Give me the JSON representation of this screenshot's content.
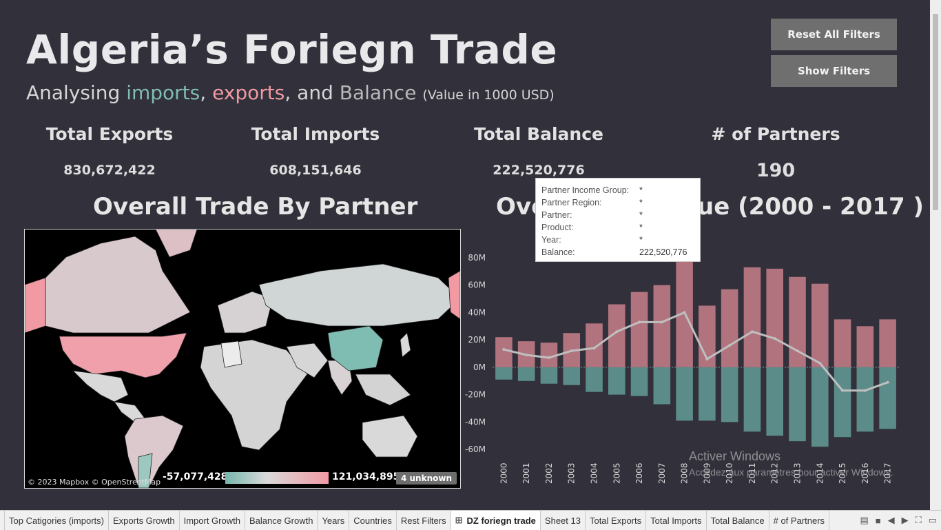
{
  "header": {
    "title": "Algeria’s Foriegn Trade",
    "subtitle_prefix": "Analysing ",
    "subtitle_imports": "imports",
    "subtitle_sep1": ", ",
    "subtitle_exports": "exports",
    "subtitle_sep2": ", and ",
    "subtitle_balance": "Balance",
    "subtitle_unit": "(Value in 1000 USD)"
  },
  "buttons": {
    "reset": "Reset All Filters",
    "show": "Show Filters"
  },
  "kpis": [
    {
      "label": "Total Exports",
      "value": "830,672,422"
    },
    {
      "label": "Total Imports",
      "value": "608,151,646"
    },
    {
      "label": "Total Balance",
      "value": "222,520,776"
    },
    {
      "label": "# of Partners",
      "value": "190"
    }
  ],
  "sections": {
    "map_title": "Overall Trade By Partner",
    "chart_title_left": "Ove",
    "chart_title_right": "ue  (2000 - 2017 )"
  },
  "map": {
    "attribution": "© 2023 Mapbox © OpenStreetMap",
    "legend_min": "-57,077,428",
    "legend_max": "121,034,895",
    "unknown": "4 unknown",
    "colors": {
      "negative": "#76b6ac",
      "neutral": "#d9d9d9",
      "positive": "#f19aa4"
    }
  },
  "tooltip": [
    {
      "key": "Partner Income Group:",
      "value": "*"
    },
    {
      "key": "Partner Region:",
      "value": "*"
    },
    {
      "key": "Partner:",
      "value": "*"
    },
    {
      "key": "Product:",
      "value": "*"
    },
    {
      "key": "Year:",
      "value": "*"
    },
    {
      "key": "Balance:",
      "value": "222,520,776"
    }
  ],
  "watermark": {
    "line1": "Activer Windows",
    "line2": "Accédez aux paramètres pour activer Windows."
  },
  "tabs": [
    {
      "label": "Top Catigories (imports)",
      "active": false
    },
    {
      "label": "Exports Growth",
      "active": false
    },
    {
      "label": "Import Growth",
      "active": false
    },
    {
      "label": "Balance Growth",
      "active": false
    },
    {
      "label": "Years",
      "active": false
    },
    {
      "label": "Countries",
      "active": false
    },
    {
      "label": "Rest Filters",
      "active": false
    },
    {
      "label": "DZ foriegn trade",
      "active": true
    },
    {
      "label": "Sheet 13",
      "active": false
    },
    {
      "label": "Total Exports",
      "active": false
    },
    {
      "label": "Total Imports",
      "active": false
    },
    {
      "label": "Total Balance",
      "active": false
    },
    {
      "label": "# of Partners",
      "active": false
    }
  ],
  "chart_data": {
    "type": "bar",
    "categories": [
      "2000",
      "2001",
      "2002",
      "2003",
      "2004",
      "2005",
      "2006",
      "2007",
      "2008",
      "2009",
      "2010",
      "2011",
      "2012",
      "2013",
      "2014",
      "2015",
      "2016",
      "2017"
    ],
    "series": [
      {
        "values": [
          22,
          19,
          18,
          25,
          32,
          46,
          55,
          60,
          80,
          45,
          57,
          73,
          72,
          66,
          61,
          35,
          30,
          35
        ],
        "color": "#b1737e"
      },
      {
        "values": [
          -9,
          -10,
          -12,
          -13,
          -18,
          -20,
          -21,
          -27,
          -39,
          -39,
          -40,
          -47,
          -50,
          -54,
          -58,
          -51,
          -47,
          -45
        ],
        "color": "#5b8c89"
      },
      {
        "values": [
          13,
          9,
          7,
          12,
          14,
          26,
          33,
          33,
          40,
          6,
          16,
          26,
          21,
          12,
          3,
          -17,
          -17,
          -11
        ],
        "color": "#bfbfbf"
      }
    ],
    "yticks": [
      "80M",
      "60M",
      "40M",
      "20M",
      "0M",
      "-20M",
      "-40M",
      "-60M"
    ],
    "ylim": [
      -65,
      82
    ],
    "grid": false
  }
}
